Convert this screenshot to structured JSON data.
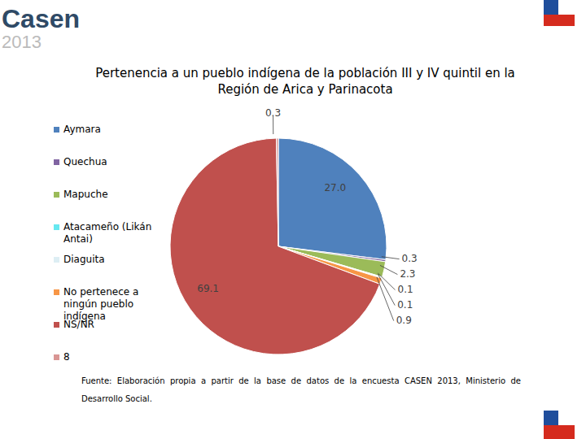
{
  "header": {
    "brand": "Casen",
    "year": "2013"
  },
  "chart_data": {
    "type": "pie",
    "title": "Pertenencia a un pueblo indígena de la población III y IV quintil en la Región de Arica y Parinacota",
    "categories": [
      "Aymara",
      "Quechua",
      "Mapuche",
      "Atacameño (Likán Antai)",
      "Diaguita",
      "No pertenece a ningún pueblo indígena",
      "NS/NR",
      "8"
    ],
    "values": [
      27.0,
      0.3,
      2.3,
      0.1,
      0.1,
      0.9,
      69.1,
      0.3
    ],
    "value_labels": [
      "27.0",
      "0.3",
      "2.3",
      "0.1",
      "0.1",
      "0.9",
      "69.1",
      "0.3"
    ],
    "colors": [
      "#4F81BD",
      "#8064A2",
      "#9BBB59",
      "#66E8F0",
      "#DDEEF4",
      "#F79646",
      "#C0504D",
      "#D99694"
    ],
    "data_labels": true,
    "legend": "left",
    "source": "Fuente: Elaboración propia a partir de la base de datos de la encuesta CASEN 2013, Ministerio de Desarrollo Social."
  }
}
